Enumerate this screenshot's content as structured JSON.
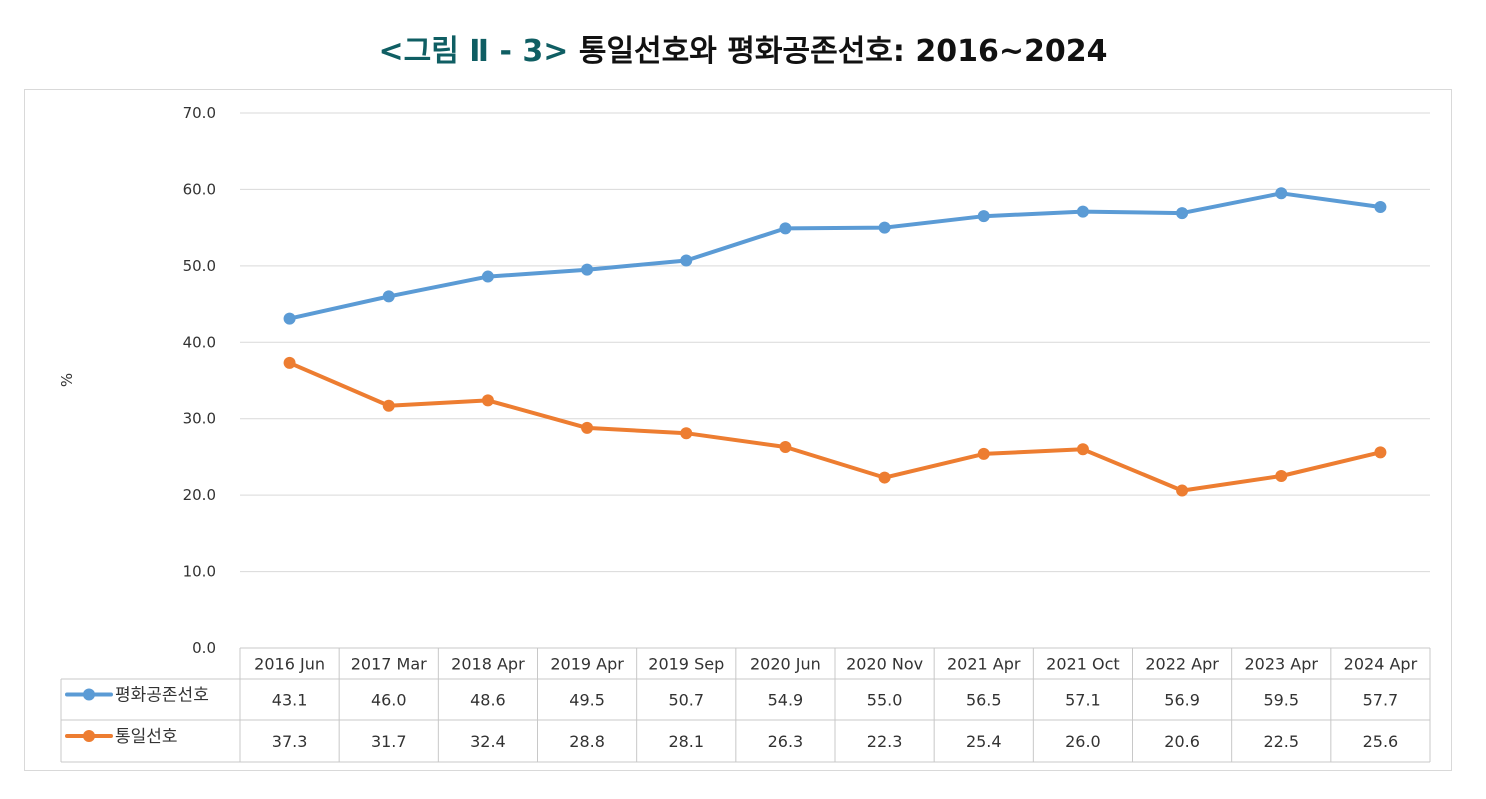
{
  "title": {
    "prefix": "<그림 Ⅱ - 3>",
    "text": "통일선호와 평화공존선호: 2016~2024"
  },
  "chart_data": {
    "type": "line",
    "title": "<그림 Ⅱ - 3> 통일선호와 평화공존선호: 2016~2024",
    "xlabel": "",
    "ylabel": "%",
    "ylim": [
      0,
      70
    ],
    "yticks": [
      "0.0",
      "10.0",
      "20.0",
      "30.0",
      "40.0",
      "50.0",
      "60.0",
      "70.0"
    ],
    "grid": true,
    "legend": "data-table-left",
    "categories": [
      "2016 Jun",
      "2017 Mar",
      "2018 Apr",
      "2019 Apr",
      "2019 Sep",
      "2020 Jun",
      "2020 Nov",
      "2021 Apr",
      "2021 Oct",
      "2022 Apr",
      "2023 Apr",
      "2024 Apr"
    ],
    "series": [
      {
        "name": "평화공존선호",
        "color": "#5b9bd5",
        "values": [
          43.1,
          46.0,
          48.6,
          49.5,
          50.7,
          54.9,
          55.0,
          56.5,
          57.1,
          56.9,
          59.5,
          57.7
        ],
        "labels": [
          "43.1",
          "46.0",
          "48.6",
          "49.5",
          "50.7",
          "54.9",
          "55.0",
          "56.5",
          "57.1",
          "56.9",
          "59.5",
          "57.7"
        ]
      },
      {
        "name": "통일선호",
        "color": "#ed7d31",
        "values": [
          37.3,
          31.7,
          32.4,
          28.8,
          28.1,
          26.3,
          22.3,
          25.4,
          26.0,
          20.6,
          22.5,
          25.6
        ],
        "labels": [
          "37.3",
          "31.7",
          "32.4",
          "28.8",
          "28.1",
          "26.3",
          "22.3",
          "25.4",
          "26.0",
          "20.6",
          "22.5",
          "25.6"
        ]
      }
    ]
  }
}
